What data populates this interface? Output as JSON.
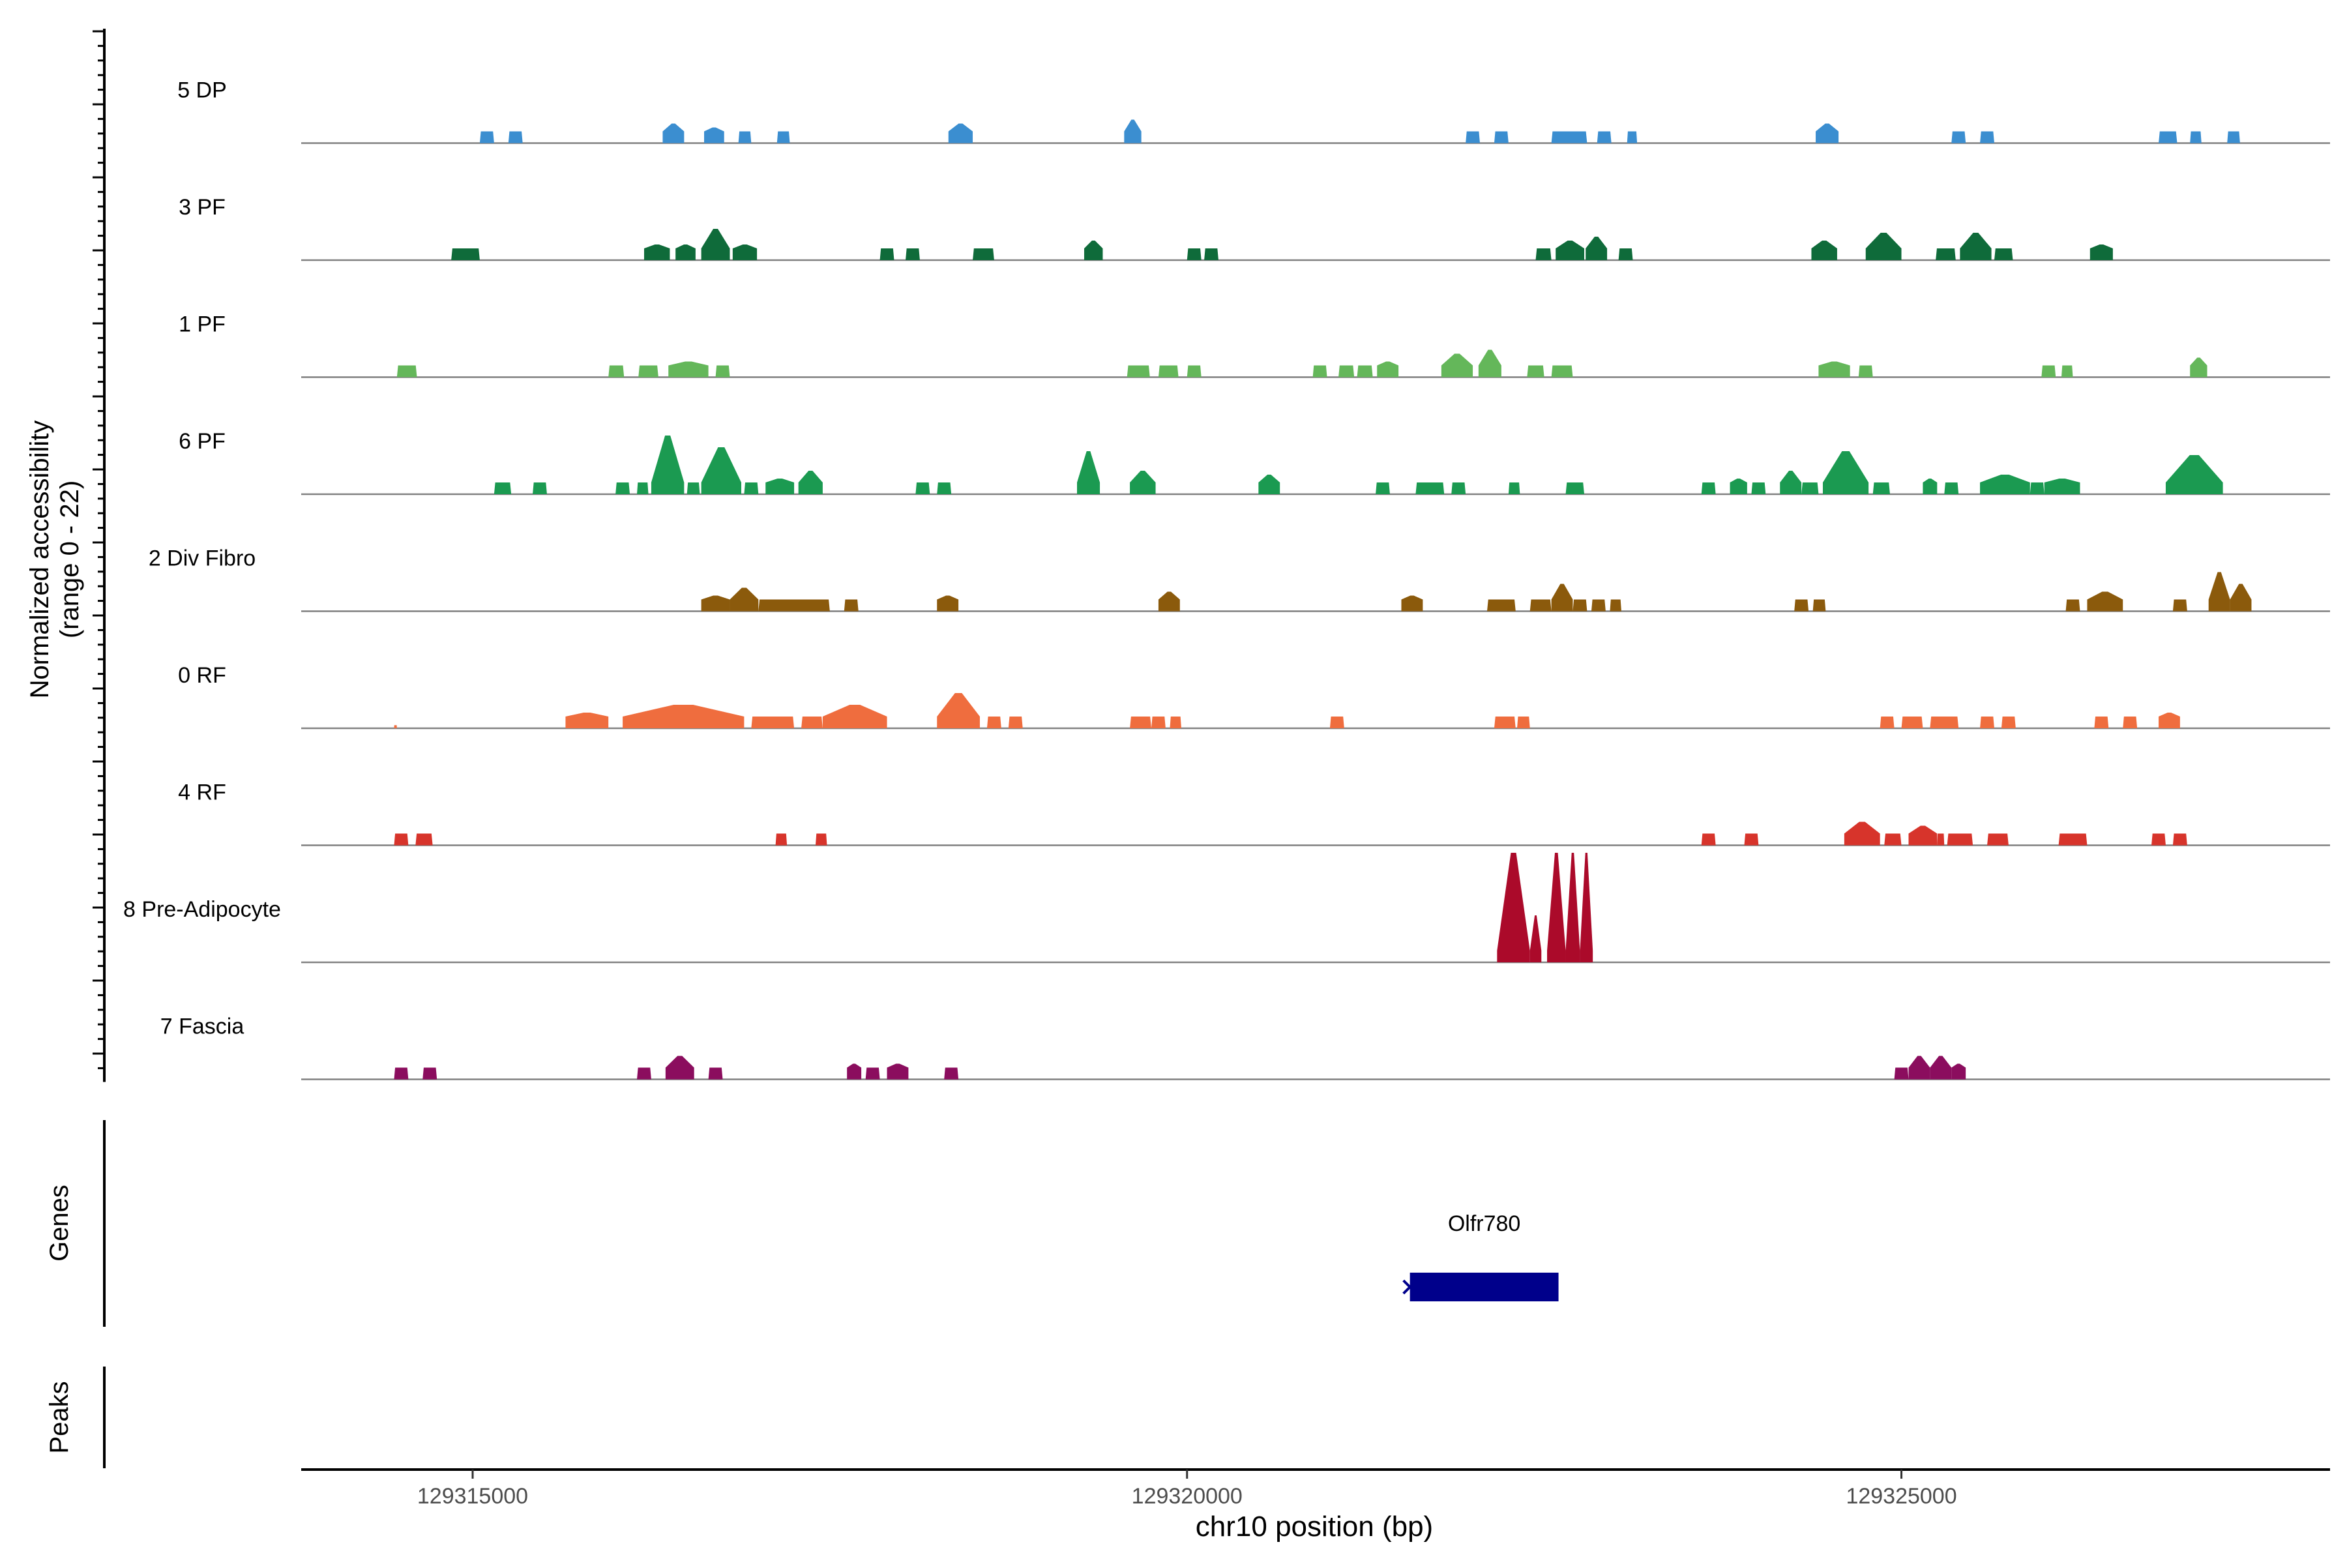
{
  "chart_data": {
    "type": "area",
    "chromosome": "chr10",
    "xlabel": "chr10 position (bp)",
    "xlim": [
      129313800,
      129328000
    ],
    "xticks": [
      129315000,
      129320000,
      129325000
    ],
    "xtick_labels": [
      "129315000",
      "129320000",
      "129325000"
    ],
    "ylabel_line1": "Normalized accessibility",
    "ylabel_line2": "(range 0 - 22)",
    "ylim": [
      0,
      22
    ],
    "series": [
      {
        "name": "5 DP",
        "color": "#3b8ed0",
        "peaks": [
          [
            129315050,
            129315150,
            1.5
          ],
          [
            129315250,
            129315350,
            1.5
          ],
          [
            129316330,
            129316480,
            2.5
          ],
          [
            129316620,
            129316760,
            2.0
          ],
          [
            129316860,
            129316950,
            1.5
          ],
          [
            129317130,
            129317220,
            1.5
          ],
          [
            129318330,
            129318500,
            2.5
          ],
          [
            129319560,
            129319680,
            3.0
          ],
          [
            129321950,
            129322050,
            1.5
          ],
          [
            129322150,
            129322250,
            1.5
          ],
          [
            129322550,
            129322800,
            1.5
          ],
          [
            129322870,
            129322970,
            1.5
          ],
          [
            129323080,
            129323150,
            1.5
          ],
          [
            129324400,
            129324560,
            2.5
          ],
          [
            129325350,
            129325450,
            1.5
          ],
          [
            129325550,
            129325650,
            1.5
          ],
          [
            129326800,
            129326930,
            1.5
          ],
          [
            129327020,
            129327100,
            1.5
          ],
          [
            129327280,
            129327370,
            1.5
          ]
        ]
      },
      {
        "name": "3 PF",
        "color": "#0f6b3a",
        "peaks": [
          [
            129314850,
            129315050,
            1.5
          ],
          [
            129316200,
            129316380,
            2.0
          ],
          [
            129316420,
            129316560,
            2.0
          ],
          [
            129316600,
            129316800,
            4.0
          ],
          [
            129316820,
            129316990,
            2.0
          ],
          [
            129317850,
            129317950,
            1.5
          ],
          [
            129318030,
            129318130,
            1.5
          ],
          [
            129318500,
            129318650,
            1.5
          ],
          [
            129319280,
            129319410,
            2.5
          ],
          [
            129320000,
            129320100,
            1.5
          ],
          [
            129320120,
            129320220,
            1.5
          ],
          [
            129322440,
            129322550,
            1.5
          ],
          [
            129322580,
            129322780,
            2.5
          ],
          [
            129322790,
            129322940,
            3.0
          ],
          [
            129323020,
            129323120,
            1.5
          ],
          [
            129324370,
            129324550,
            2.5
          ],
          [
            129324750,
            129325000,
            3.5
          ],
          [
            129325240,
            129325380,
            1.5
          ],
          [
            129325410,
            129325630,
            3.5
          ],
          [
            129325650,
            129325780,
            1.5
          ],
          [
            129326320,
            129326480,
            2.0
          ]
        ]
      },
      {
        "name": "1 PF",
        "color": "#64b75a",
        "peaks": [
          [
            129314470,
            129314610,
            1.5
          ],
          [
            129315950,
            129316060,
            1.5
          ],
          [
            129316160,
            129316300,
            1.5
          ],
          [
            129316370,
            129316650,
            2.0
          ],
          [
            129316700,
            129316800,
            1.5
          ],
          [
            129319580,
            129319740,
            1.5
          ],
          [
            129319800,
            129319940,
            1.5
          ],
          [
            129320000,
            129320100,
            1.5
          ],
          [
            129320880,
            129320980,
            1.5
          ],
          [
            129321060,
            129321170,
            1.5
          ],
          [
            129321190,
            129321300,
            1.5
          ],
          [
            129321330,
            129321480,
            2.0
          ],
          [
            129321780,
            129322000,
            3.0
          ],
          [
            129322040,
            129322200,
            3.5
          ],
          [
            129322380,
            129322500,
            1.5
          ],
          [
            129322550,
            129322700,
            1.5
          ],
          [
            129324420,
            129324640,
            2.0
          ],
          [
            129324700,
            129324800,
            1.5
          ],
          [
            129325980,
            129326080,
            1.5
          ],
          [
            129326120,
            129326200,
            1.5
          ],
          [
            129327020,
            129327140,
            2.5
          ]
        ]
      },
      {
        "name": "6 PF",
        "color": "#1b9a51",
        "peaks": [
          [
            129315150,
            129315270,
            1.5
          ],
          [
            129315420,
            129315520,
            1.5
          ],
          [
            129316000,
            129316100,
            1.5
          ],
          [
            129316150,
            129316230,
            1.5
          ],
          [
            129316250,
            129316480,
            7.5
          ],
          [
            129316500,
            129316590,
            1.5
          ],
          [
            129316600,
            129316880,
            6.0
          ],
          [
            129316900,
            129317000,
            1.5
          ],
          [
            129317050,
            129317250,
            2.0
          ],
          [
            129317280,
            129317450,
            3.0
          ],
          [
            129318100,
            129318200,
            1.5
          ],
          [
            129318250,
            129318350,
            1.5
          ],
          [
            129319230,
            129319390,
            5.5
          ],
          [
            129319600,
            129319780,
            3.0
          ],
          [
            129320500,
            129320650,
            2.5
          ],
          [
            129321320,
            129321420,
            1.5
          ],
          [
            129321600,
            129321800,
            1.5
          ],
          [
            129321850,
            129321950,
            1.5
          ],
          [
            129322250,
            129322330,
            1.5
          ],
          [
            129322650,
            129322780,
            1.5
          ],
          [
            129323600,
            129323700,
            1.5
          ],
          [
            129323800,
            129323920,
            2.0
          ],
          [
            129323950,
            129324050,
            1.5
          ],
          [
            129324150,
            129324300,
            3.0
          ],
          [
            129324300,
            129324420,
            1.5
          ],
          [
            129324450,
            129324770,
            5.5
          ],
          [
            129324800,
            129324920,
            1.5
          ],
          [
            129325150,
            129325250,
            2.0
          ],
          [
            129325300,
            129325400,
            1.5
          ],
          [
            129325550,
            129325900,
            2.5
          ],
          [
            129325900,
            129326000,
            1.5
          ],
          [
            129326000,
            129326250,
            2.0
          ],
          [
            129326850,
            129327250,
            5.0
          ]
        ]
      },
      {
        "name": "2 Div Fibro",
        "color": "#8b5a0c",
        "peaks": [
          [
            129316600,
            129316800,
            2.0
          ],
          [
            129316800,
            129317000,
            3.0
          ],
          [
            129317000,
            129317500,
            1.5
          ],
          [
            129317600,
            129317700,
            1.5
          ],
          [
            129318250,
            129318400,
            2.0
          ],
          [
            129319800,
            129319950,
            2.5
          ],
          [
            129321500,
            129321650,
            2.0
          ],
          [
            129322100,
            129322300,
            1.5
          ],
          [
            129322400,
            129322550,
            1.5
          ],
          [
            129322550,
            129322700,
            3.5
          ],
          [
            129322700,
            129322800,
            1.5
          ],
          [
            129322830,
            129322930,
            1.5
          ],
          [
            129322960,
            129323040,
            1.5
          ],
          [
            129324250,
            129324350,
            1.5
          ],
          [
            129324380,
            129324470,
            1.5
          ],
          [
            129326150,
            129326250,
            1.5
          ],
          [
            129326300,
            129326550,
            2.5
          ],
          [
            129326900,
            129327000,
            1.5
          ],
          [
            129327150,
            129327300,
            5.0
          ],
          [
            129327300,
            129327450,
            3.5
          ]
        ]
      },
      {
        "name": "0 RF",
        "color": "#ef6d3e",
        "peaks": [
          [
            129314450,
            129314470,
            0.4
          ],
          [
            129315650,
            129315950,
            2.0
          ],
          [
            129316050,
            129316900,
            3.0
          ],
          [
            129316950,
            129317250,
            1.5
          ],
          [
            129317300,
            129317450,
            1.5
          ],
          [
            129317450,
            129317900,
            3.0
          ],
          [
            129318250,
            129318550,
            4.5
          ],
          [
            129318600,
            129318700,
            1.5
          ],
          [
            129318750,
            129318850,
            1.5
          ],
          [
            129319600,
            129319750,
            1.5
          ],
          [
            129319750,
            129319850,
            1.5
          ],
          [
            129319880,
            129319960,
            1.5
          ],
          [
            129321000,
            129321100,
            1.5
          ],
          [
            129322150,
            129322300,
            1.5
          ],
          [
            129322310,
            129322400,
            1.5
          ],
          [
            129324850,
            129324950,
            1.5
          ],
          [
            129325000,
            129325150,
            1.5
          ],
          [
            129325200,
            129325400,
            1.5
          ],
          [
            129325550,
            129325650,
            1.5
          ],
          [
            129325700,
            129325800,
            1.5
          ],
          [
            129326350,
            129326450,
            1.5
          ],
          [
            129326550,
            129326650,
            1.5
          ],
          [
            129326800,
            129326950,
            2.0
          ]
        ]
      },
      {
        "name": "4 RF",
        "color": "#d7342b",
        "peaks": [
          [
            129314450,
            129314550,
            1.5
          ],
          [
            129314600,
            129314720,
            1.5
          ],
          [
            129317120,
            129317200,
            1.5
          ],
          [
            129317400,
            129317480,
            1.5
          ],
          [
            129323600,
            129323700,
            1.5
          ],
          [
            129323900,
            129324000,
            1.5
          ],
          [
            129324600,
            129324850,
            3.0
          ],
          [
            129324880,
            129325000,
            1.5
          ],
          [
            129325050,
            129325250,
            2.5
          ],
          [
            129325250,
            129325300,
            1.5
          ],
          [
            129325320,
            129325500,
            1.5
          ],
          [
            129325600,
            129325750,
            1.5
          ],
          [
            129326100,
            129326300,
            1.5
          ],
          [
            129326750,
            129326850,
            1.5
          ],
          [
            129326900,
            129327000,
            1.5
          ]
        ]
      },
      {
        "name": "8 Pre-Adipocyte",
        "color": "#ab0a2a",
        "peaks": [
          [
            129322170,
            129322400,
            14.0
          ],
          [
            129322400,
            129322480,
            6.0
          ],
          [
            129322520,
            129322650,
            14.0
          ],
          [
            129322650,
            129322750,
            14.0
          ],
          [
            129322750,
            129322840,
            14.0
          ]
        ]
      },
      {
        "name": "7 Fascia",
        "color": "#8b0d5e",
        "peaks": [
          [
            129314450,
            129314550,
            1.5
          ],
          [
            129314650,
            129314750,
            1.5
          ],
          [
            129316150,
            129316250,
            1.5
          ],
          [
            129316350,
            129316550,
            3.0
          ],
          [
            129316650,
            129316750,
            1.5
          ],
          [
            129317620,
            129317720,
            2.0
          ],
          [
            129317750,
            129317850,
            1.5
          ],
          [
            129317900,
            129318050,
            2.0
          ],
          [
            129318300,
            129318400,
            1.5
          ],
          [
            129324950,
            129325050,
            1.5
          ],
          [
            129325050,
            129325200,
            3.0
          ],
          [
            129325200,
            129325350,
            3.0
          ],
          [
            129325350,
            129325450,
            2.0
          ]
        ]
      }
    ],
    "genes_label": "Genes",
    "genes": [
      {
        "name": "Olfr780",
        "start": 129321560,
        "end": 129322600,
        "strand": "-",
        "color": "#00008b"
      }
    ],
    "peaks_label": "Peaks",
    "grid": false,
    "legend": "none"
  }
}
